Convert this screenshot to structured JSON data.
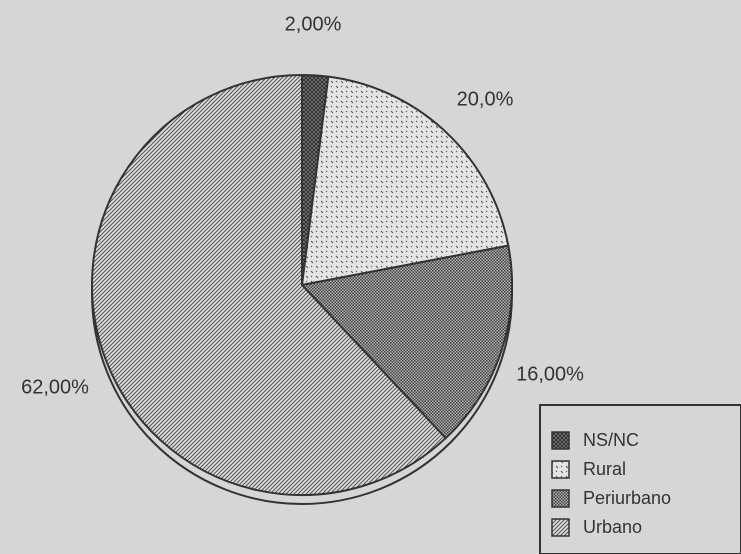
{
  "chart_data": {
    "type": "pie",
    "categories": [
      "NS/NC",
      "Rural",
      "Periurbano",
      "Urbano"
    ],
    "values": [
      2,
      20,
      16,
      62
    ],
    "value_labels": [
      "2,00%",
      "20,0%",
      "16,00%",
      "62,00%"
    ],
    "colors": [
      "#333333",
      "#555555",
      "#444444",
      "#555555"
    ]
  }
}
